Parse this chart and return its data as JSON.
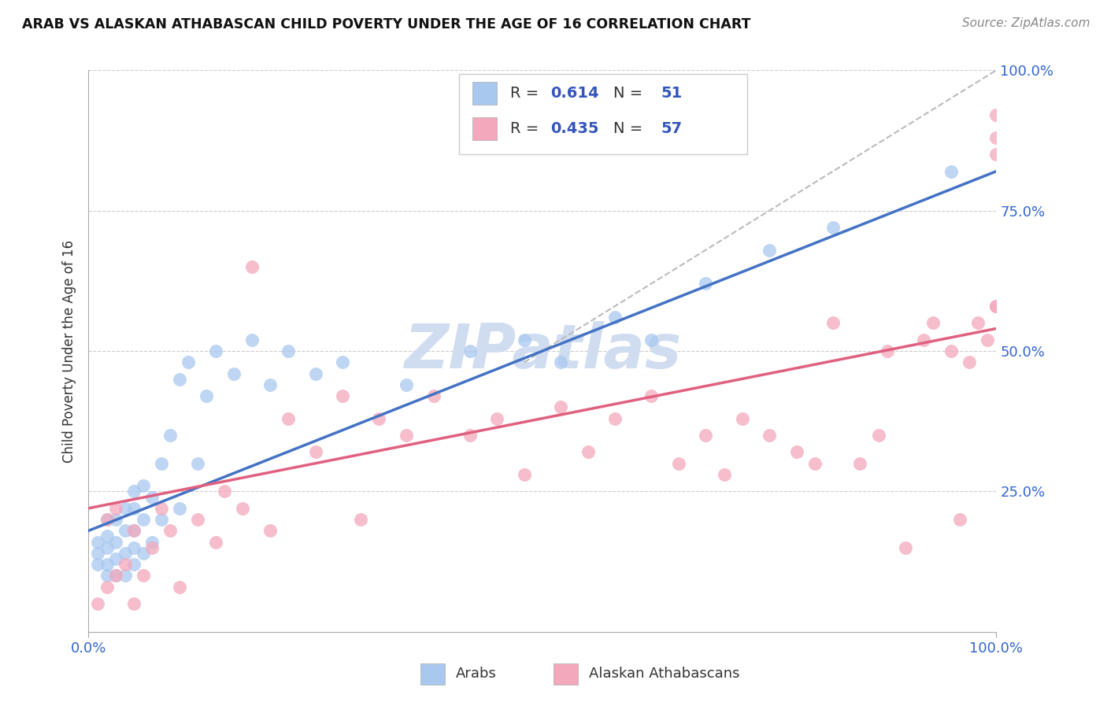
{
  "title": "ARAB VS ALASKAN ATHABASCAN CHILD POVERTY UNDER THE AGE OF 16 CORRELATION CHART",
  "source": "Source: ZipAtlas.com",
  "ylabel": "Child Poverty Under the Age of 16",
  "legend_labels": [
    "Arabs",
    "Alaskan Athabascans"
  ],
  "arab_color": "#A8C8F0",
  "alaskan_color": "#F4A8BC",
  "arab_line_color": "#4472C4",
  "alaskan_line_color": "#E06080",
  "diagonal_color": "#BBBBBB",
  "grid_color": "#CCCCCC",
  "watermark": "ZIPatlas",
  "watermark_color": "#D0DCF0",
  "arab_x": [
    0.01,
    0.01,
    0.01,
    0.02,
    0.02,
    0.02,
    0.02,
    0.02,
    0.03,
    0.03,
    0.03,
    0.03,
    0.04,
    0.04,
    0.04,
    0.04,
    0.05,
    0.05,
    0.05,
    0.05,
    0.05,
    0.06,
    0.06,
    0.06,
    0.07,
    0.07,
    0.08,
    0.08,
    0.09,
    0.1,
    0.1,
    0.11,
    0.12,
    0.13,
    0.14,
    0.16,
    0.18,
    0.2,
    0.22,
    0.25,
    0.28,
    0.35,
    0.42,
    0.48,
    0.52,
    0.58,
    0.62,
    0.68,
    0.75,
    0.82,
    0.95
  ],
  "arab_y": [
    0.12,
    0.14,
    0.16,
    0.1,
    0.12,
    0.15,
    0.17,
    0.2,
    0.1,
    0.13,
    0.16,
    0.2,
    0.1,
    0.14,
    0.18,
    0.22,
    0.12,
    0.15,
    0.18,
    0.22,
    0.25,
    0.14,
    0.2,
    0.26,
    0.16,
    0.24,
    0.2,
    0.3,
    0.35,
    0.22,
    0.45,
    0.48,
    0.3,
    0.42,
    0.5,
    0.46,
    0.52,
    0.44,
    0.5,
    0.46,
    0.48,
    0.44,
    0.5,
    0.52,
    0.48,
    0.56,
    0.52,
    0.62,
    0.68,
    0.72,
    0.82
  ],
  "alaskan_x": [
    0.01,
    0.02,
    0.02,
    0.03,
    0.03,
    0.04,
    0.05,
    0.05,
    0.06,
    0.07,
    0.08,
    0.09,
    0.1,
    0.12,
    0.14,
    0.15,
    0.17,
    0.18,
    0.2,
    0.22,
    0.25,
    0.28,
    0.3,
    0.32,
    0.35,
    0.38,
    0.42,
    0.45,
    0.48,
    0.52,
    0.55,
    0.58,
    0.62,
    0.65,
    0.68,
    0.7,
    0.72,
    0.75,
    0.78,
    0.8,
    0.82,
    0.85,
    0.87,
    0.88,
    0.9,
    0.92,
    0.93,
    0.95,
    0.96,
    0.97,
    0.98,
    0.99,
    1.0,
    1.0,
    1.0,
    1.0,
    1.0
  ],
  "alaskan_y": [
    0.05,
    0.08,
    0.2,
    0.1,
    0.22,
    0.12,
    0.05,
    0.18,
    0.1,
    0.15,
    0.22,
    0.18,
    0.08,
    0.2,
    0.16,
    0.25,
    0.22,
    0.65,
    0.18,
    0.38,
    0.32,
    0.42,
    0.2,
    0.38,
    0.35,
    0.42,
    0.35,
    0.38,
    0.28,
    0.4,
    0.32,
    0.38,
    0.42,
    0.3,
    0.35,
    0.28,
    0.38,
    0.35,
    0.32,
    0.3,
    0.55,
    0.3,
    0.35,
    0.5,
    0.15,
    0.52,
    0.55,
    0.5,
    0.2,
    0.48,
    0.55,
    0.52,
    0.58,
    0.85,
    0.88,
    0.92,
    0.58
  ],
  "xlim": [
    0.0,
    1.0
  ],
  "ylim": [
    0.0,
    1.0
  ],
  "arab_R": 0.614,
  "arab_N": 51,
  "alaskan_R": 0.435,
  "alaskan_N": 57
}
